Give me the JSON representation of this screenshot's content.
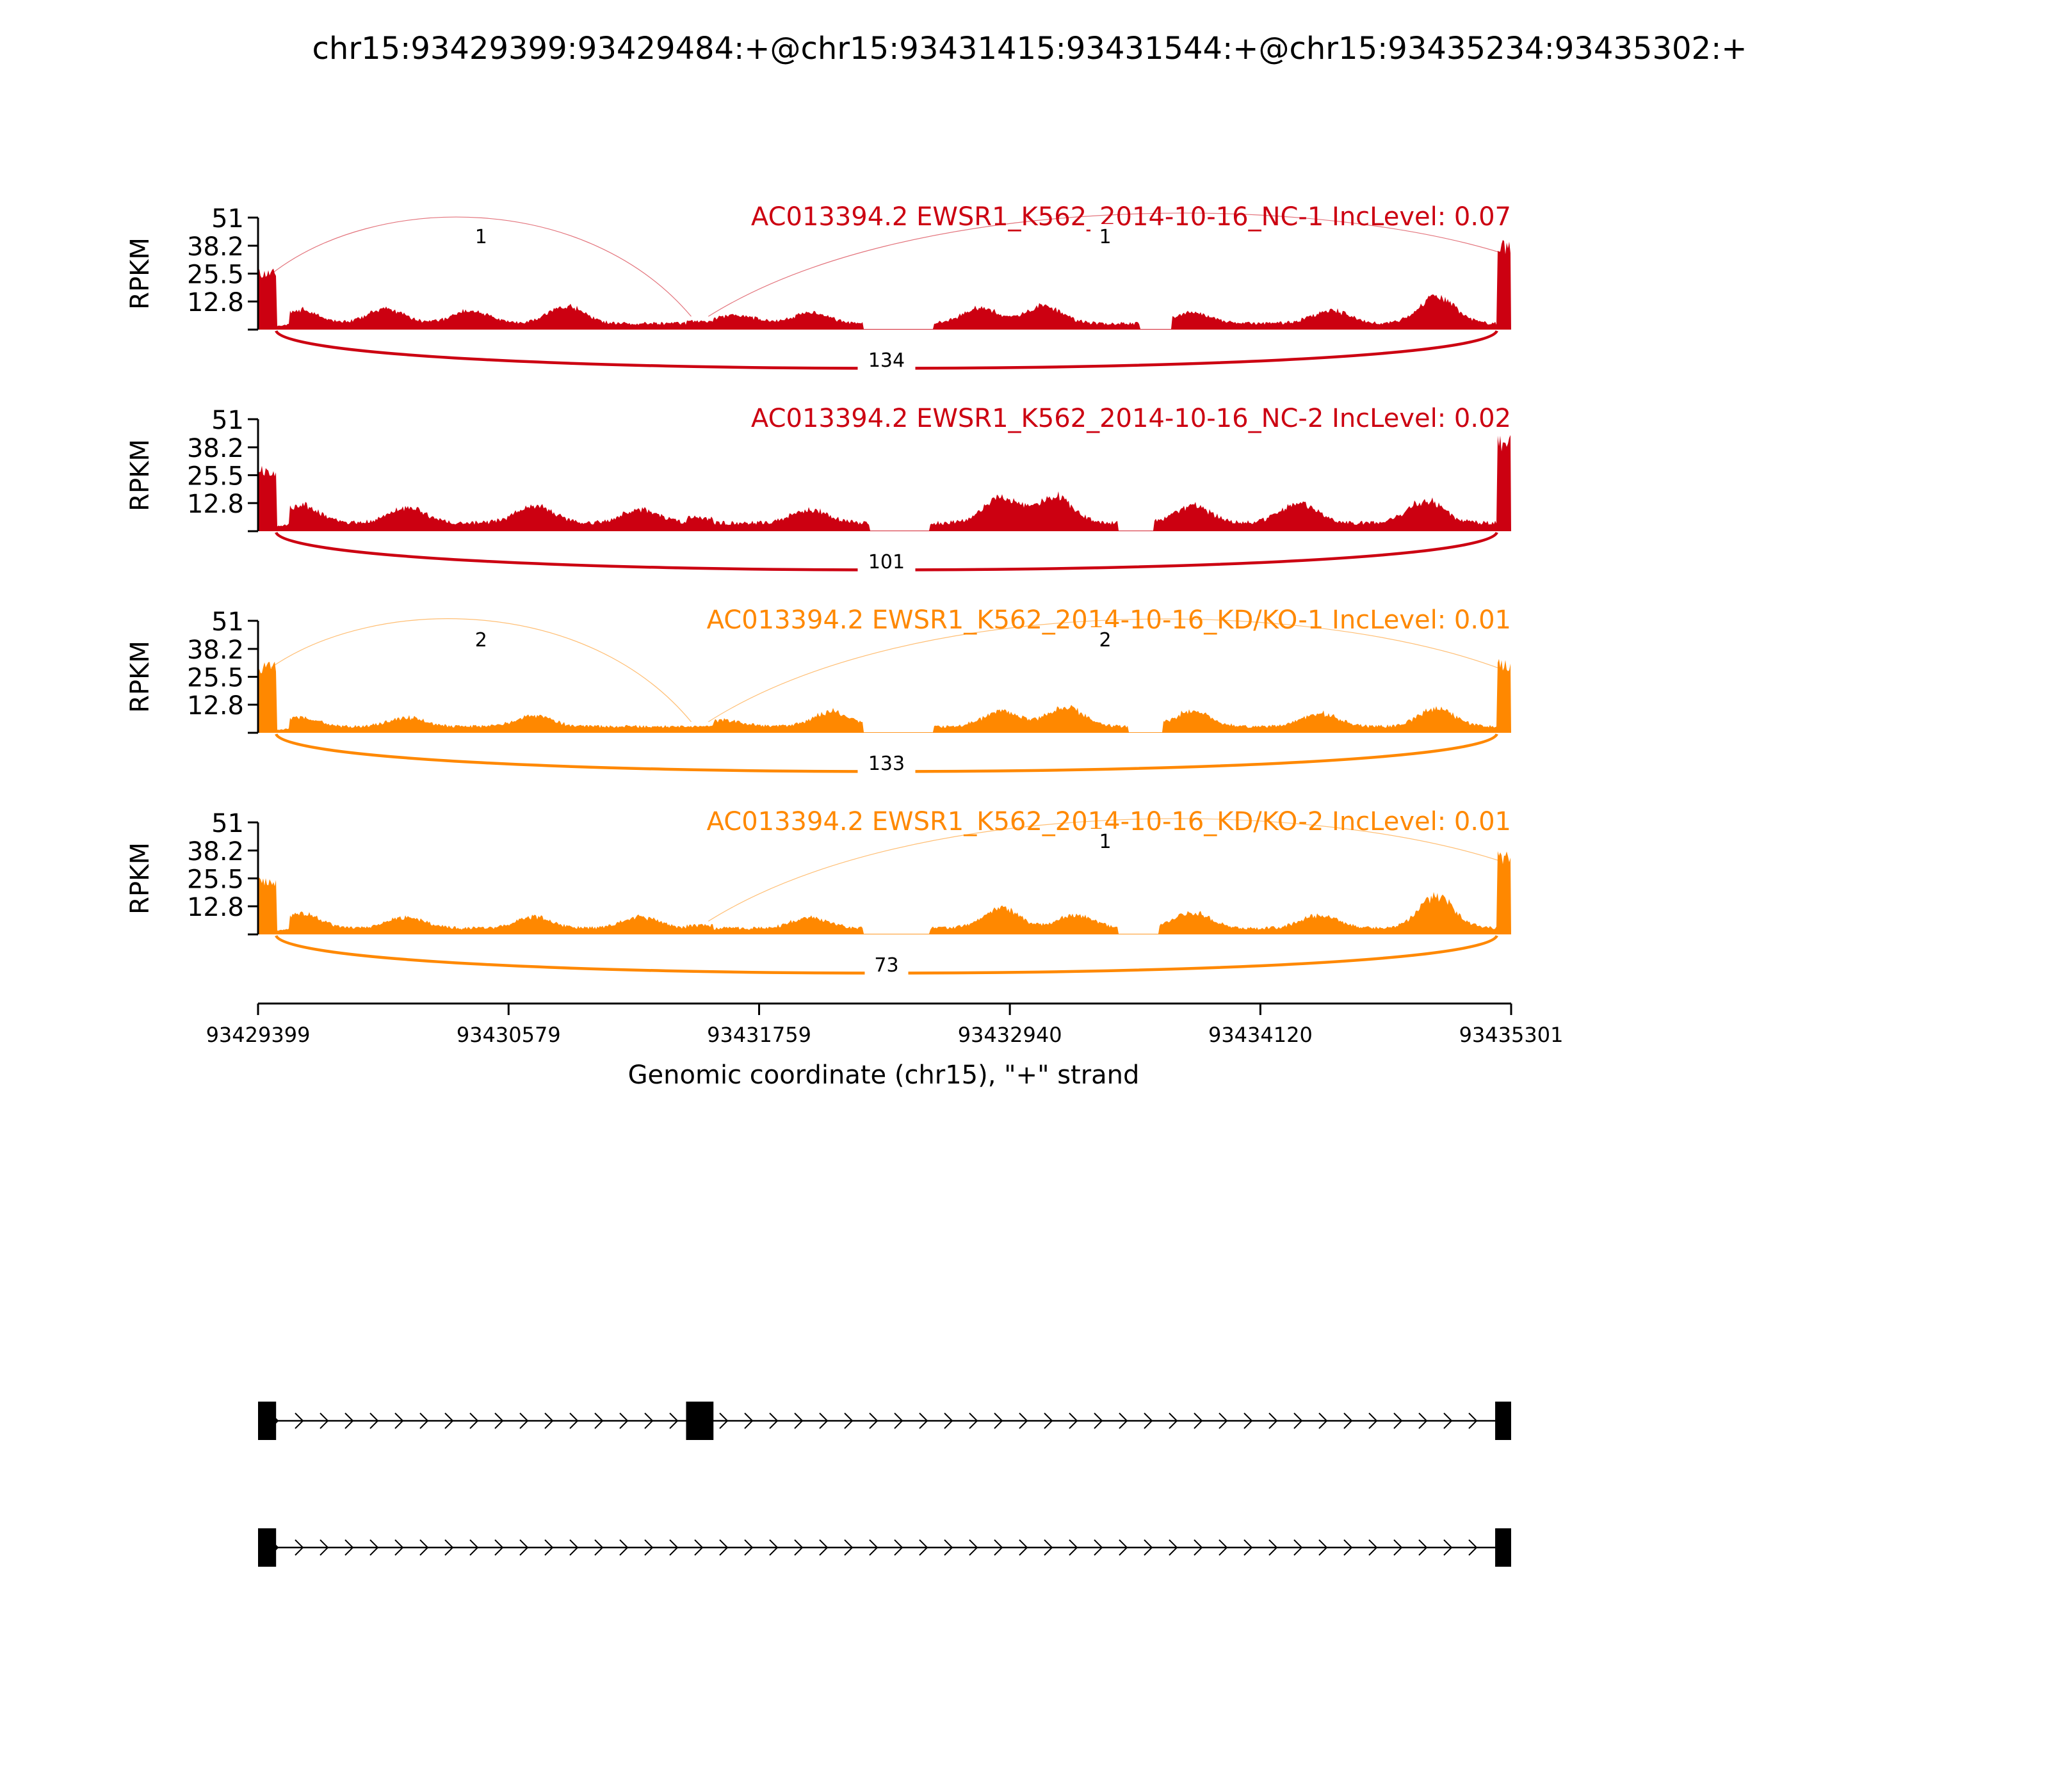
{
  "figure": {
    "title": "chr15:93429399:93429484:+@chr15:93431415:93431544:+@chr15:93435234:93435302:+"
  },
  "chart_data": {
    "type": "area",
    "title": "chr15:93429399:93429484:+@chr15:93431415:93431544:+@chr15:93435234:93435302:+",
    "xlabel": "Genomic coordinate (chr15), \"+\" strand",
    "ylabel": "RPKM",
    "xlim": [
      93429399,
      93435301
    ],
    "ylim": [
      0,
      51
    ],
    "xticks": [
      "93429399",
      "93430579",
      "93431759",
      "93432940",
      "93434120",
      "93435301"
    ],
    "yticks": [
      "12.8",
      "25.5",
      "38.2",
      "51"
    ],
    "exons": [
      [
        93429399,
        93429484
      ],
      [
        93431415,
        93431544
      ],
      [
        93435234,
        93435302
      ]
    ],
    "colors": {
      "NC": "#cc0011",
      "KD": "#ff8800"
    },
    "series": [
      {
        "name": "AC013394.2 EWSR1_K562_2014-10-16_NC-1 IncLevel: 0.07",
        "group": "NC",
        "junctions": [
          {
            "start": 93429484,
            "end": 93431415,
            "count": "1",
            "side": "above"
          },
          {
            "start": 93431544,
            "end": 93435234,
            "count": "1",
            "side": "above"
          },
          {
            "start": 93429484,
            "end": 93435234,
            "count": "134",
            "side": "below"
          }
        ],
        "coverage": {
          "exon1": 28,
          "exon2": 4,
          "exon3": 41,
          "base": 3,
          "bumps": [
            [
              93429600,
              6
            ],
            [
              93430000,
              7
            ],
            [
              93430400,
              6
            ],
            [
              93430850,
              8
            ],
            [
              93431650,
              4
            ],
            [
              93432000,
              5
            ],
            [
              93432800,
              7
            ],
            [
              93433100,
              8
            ],
            [
              93433800,
              5
            ],
            [
              93434450,
              6
            ],
            [
              93434950,
              12
            ]
          ],
          "gaps": [
            [
              93432250,
              93432580
            ],
            [
              93433550,
              93433700
            ]
          ]
        }
      },
      {
        "name": "AC013394.2 EWSR1_K562_2014-10-16_NC-2 IncLevel: 0.02",
        "group": "NC",
        "junctions": [
          {
            "start": 93429484,
            "end": 93435234,
            "count": "101",
            "side": "below"
          }
        ],
        "coverage": {
          "exon1": 30,
          "exon2": 6,
          "exon3": 44,
          "base": 4,
          "bumps": [
            [
              93429600,
              8
            ],
            [
              93430100,
              7
            ],
            [
              93430700,
              8
            ],
            [
              93431200,
              6
            ],
            [
              93432000,
              6
            ],
            [
              93432900,
              11
            ],
            [
              93433150,
              12
            ],
            [
              93433800,
              8
            ],
            [
              93434300,
              9
            ],
            [
              93434900,
              10
            ]
          ],
          "gaps": [
            [
              93432280,
              93432560
            ],
            [
              93433450,
              93433620
            ]
          ]
        }
      },
      {
        "name": "AC013394.2 EWSR1_K562_2014-10-16_KD/KO-1 IncLevel: 0.01",
        "group": "KD",
        "junctions": [
          {
            "start": 93429484,
            "end": 93431415,
            "count": "2",
            "side": "above"
          },
          {
            "start": 93431544,
            "end": 93435234,
            "count": "2",
            "side": "above"
          },
          {
            "start": 93429484,
            "end": 93435234,
            "count": "133",
            "side": "below"
          }
        ],
        "coverage": {
          "exon1": 33,
          "exon2": 3,
          "exon3": 34,
          "base": 3,
          "bumps": [
            [
              93429600,
              4
            ],
            [
              93430100,
              4
            ],
            [
              93430700,
              5
            ],
            [
              93431600,
              3
            ],
            [
              93432100,
              7
            ],
            [
              93432900,
              7
            ],
            [
              93433200,
              9
            ],
            [
              93433800,
              7
            ],
            [
              93434400,
              6
            ],
            [
              93434950,
              8
            ]
          ],
          "gaps": [
            [
              93432250,
              93432580
            ],
            [
              93433500,
              93433660
            ]
          ]
        }
      },
      {
        "name": "AC013394.2 EWSR1_K562_2014-10-16_KD/KO-2 IncLevel: 0.01",
        "group": "KD",
        "junctions": [
          {
            "start": 93431544,
            "end": 93435234,
            "count": "1",
            "side": "above"
          },
          {
            "start": 93429484,
            "end": 93435234,
            "count": "73",
            "side": "below"
          }
        ],
        "coverage": {
          "exon1": 26,
          "exon2": 4,
          "exon3": 39,
          "base": 3,
          "bumps": [
            [
              93429600,
              7
            ],
            [
              93430100,
              5
            ],
            [
              93430700,
              5
            ],
            [
              93431200,
              5
            ],
            [
              93432000,
              5
            ],
            [
              93432900,
              9
            ],
            [
              93433250,
              6
            ],
            [
              93433800,
              7
            ],
            [
              93434400,
              6
            ],
            [
              93434950,
              14
            ]
          ],
          "gaps": [
            [
              93432250,
              93432560
            ],
            [
              93433450,
              93433640
            ]
          ]
        }
      }
    ],
    "isoforms": [
      {
        "exons": [
          [
            93429399,
            93429484
          ],
          [
            93431415,
            93431544
          ],
          [
            93435234,
            93435302
          ]
        ]
      },
      {
        "exons": [
          [
            93429399,
            93429484
          ],
          [
            93435234,
            93435302
          ]
        ]
      }
    ]
  }
}
